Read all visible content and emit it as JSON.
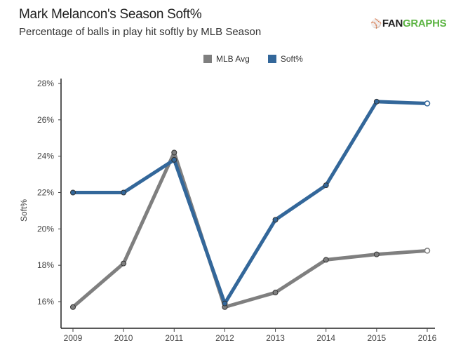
{
  "header": {
    "title": "Mark Melancon's Season Soft%",
    "subtitle": "Percentage of balls in play hit softly by MLB Season",
    "logo_prefix": "FAN",
    "logo_suffix": "GRAPHS"
  },
  "colors": {
    "mlb_avg": "#7f7f7f",
    "soft": "#33679a",
    "logo_green": "#5cb443"
  },
  "chart_data": {
    "type": "line",
    "title": "Mark Melancon's Season Soft%",
    "subtitle": "Percentage of balls in play hit softly by MLB Season",
    "xlabel": "",
    "ylabel": "Soft%",
    "x": [
      2009,
      2010,
      2011,
      2012,
      2013,
      2014,
      2015,
      2016
    ],
    "x_tick_labels": [
      "2009",
      "2010",
      "2011",
      "2012",
      "2013",
      "2014",
      "2015",
      "2016"
    ],
    "ylim": [
      14.5,
      28.3
    ],
    "y_ticks": [
      16,
      18,
      20,
      22,
      24,
      26,
      28
    ],
    "y_tick_labels": [
      "16%",
      "18%",
      "20%",
      "22%",
      "24%",
      "26%",
      "28%"
    ],
    "grid": false,
    "legend_position": "top-center",
    "series": [
      {
        "name": "MLB Avg",
        "color": "#7f7f7f",
        "values": [
          15.7,
          18.1,
          24.2,
          15.7,
          16.5,
          18.3,
          18.6,
          18.8
        ]
      },
      {
        "name": "Soft%",
        "color": "#33679a",
        "values": [
          22.0,
          22.0,
          23.8,
          15.9,
          20.5,
          22.4,
          27.0,
          26.9
        ]
      }
    ]
  }
}
